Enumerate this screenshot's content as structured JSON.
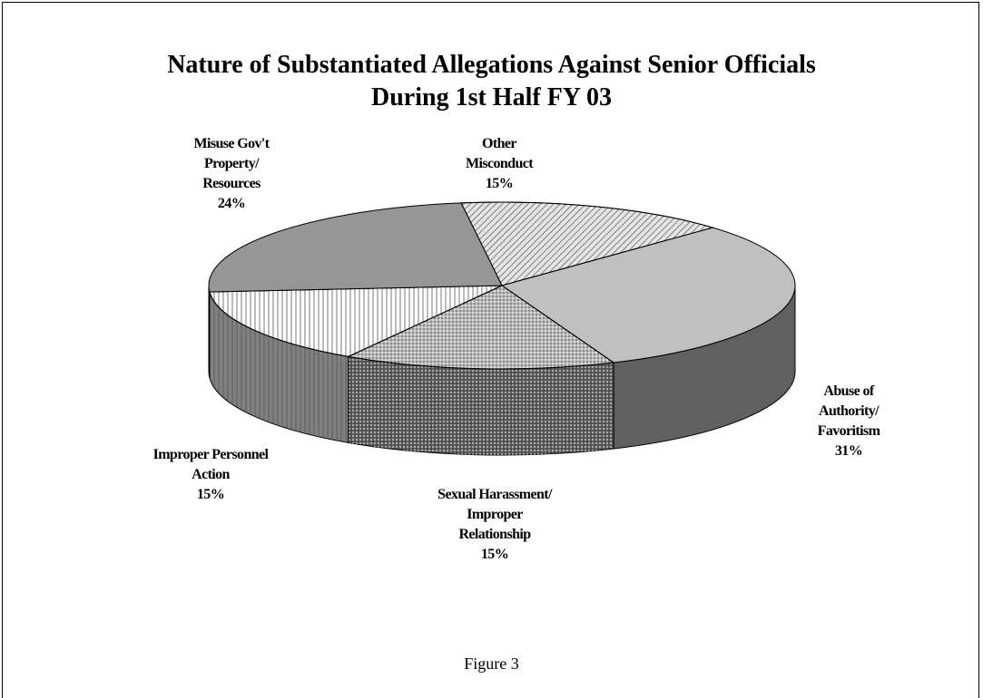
{
  "chart_data": {
    "type": "pie3d",
    "title": "Nature of Substantiated Allegations Against Senior Officials\nDuring 1st Half FY 03",
    "caption": "Figure 3",
    "categories": [
      "Other\nMisconduct",
      "Abuse of\nAuthority/\nFavoritism",
      "Sexual Harassment/\nImproper\nRelationship",
      "Improper Personnel\nAction",
      "Misuse Gov't\nProperty/\nResources"
    ],
    "values": [
      15,
      31,
      15,
      15,
      24
    ],
    "value_labels": [
      "15%",
      "31%",
      "15%",
      "15%",
      "24%"
    ],
    "colors": [
      "#e4e4e4",
      "#c0c0c0",
      "#b8b8b8",
      "#ffffff",
      "#969696"
    ],
    "patterns": [
      "diagonal",
      null,
      "dots",
      "vertical",
      null
    ]
  }
}
